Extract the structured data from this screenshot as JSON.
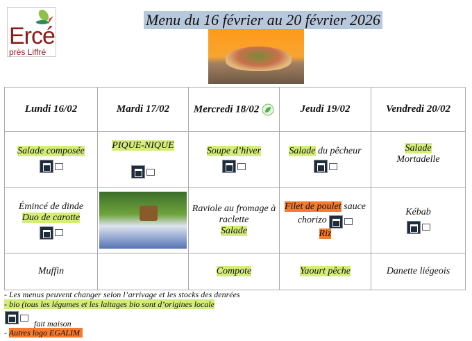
{
  "logo": {
    "line1": "Ercé",
    "line2": "près Liffré"
  },
  "title": "Menu du 16 février au 20 février 2026",
  "colors": {
    "bio": "#d4ec7a",
    "egalim": "#f47a30",
    "title_bg": "#b8c8dc"
  },
  "days": [
    "Lundi 16/02",
    "Mardi 17/02",
    "Mercredi 18/02",
    "Jeudi 19/02",
    "Vendredi 20/02"
  ],
  "starters": {
    "mon": "Salade composée",
    "tue": "PIQUE-NIQUE",
    "wed": "Soupe d’hiver",
    "thu_a": "Salade",
    "thu_b": " du pêcheur",
    "fri_a": "Salade",
    "fri_b": "Mortadelle"
  },
  "mains": {
    "mon_a": "Émincé de dinde",
    "mon_b": "Duo de carotte",
    "wed_a": "Raviole au fromage à raclette",
    "wed_b": "Salade",
    "thu_a": "Filet de poulet",
    "thu_b": " sauce chorizo",
    "thu_c": "Riz",
    "fri": "Kébab"
  },
  "desserts": {
    "mon": "Muffin",
    "wed": "Compote",
    "thu": "Yaourt pêche",
    "fri": "Danette liégeois"
  },
  "notes": {
    "n1": "- Les menus peuvent changer selon l’arrivage et les stocks des denrées",
    "n2": "-  bio (tous les légumes et les laitages bio sont d’origines locale",
    "n3": "fait maison",
    "n4a": "- ",
    "n4b": "Autres logo EGALIM"
  },
  "icons": {
    "fait_maison": "fait-maison-house-icon",
    "vegetarian": "leaf-icon"
  }
}
